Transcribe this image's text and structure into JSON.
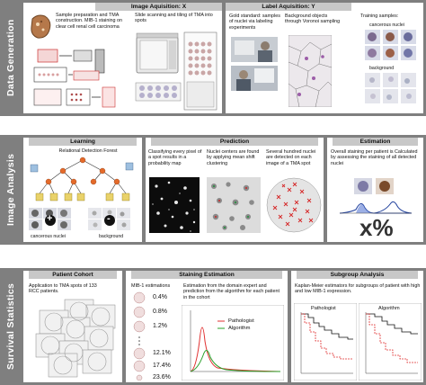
{
  "sections": [
    {
      "label": "Data Generation"
    },
    {
      "label": "Image Analysis"
    },
    {
      "label": "Survival Statistics"
    }
  ],
  "image_acquisition": {
    "title": "Image Aquisition: X",
    "text1": "Sample preparation and TMA construction. MIB-1 staining on clear cell renal cell carcinoma",
    "text2": "Slide scanning and tiling of TMA into spots"
  },
  "label_acquisition": {
    "title": "Label Aquisition: Y",
    "text1": "Gold standard: samples of nuclei via labeling experiments",
    "text2": "Background objects through Voronoi sampling",
    "text3": "Training samples:",
    "label_cancerous": "cancerous nuclei",
    "label_background": "background"
  },
  "learning": {
    "title": "Learning",
    "text": "Relational Detection Forest",
    "label_cancerous": "cancerous nuclei",
    "label_background": "background",
    "plus_symbol": "+",
    "minus_symbol": "-"
  },
  "prediction": {
    "title": "Prediction",
    "text1": "Classifying every pixel of a spot results in a probability map",
    "text2": "Nuclei centers are found by applying mean shift clustering",
    "text3": "Several hundred nuclei are detected on each image of a TMA spot"
  },
  "estimation": {
    "title": "Estimation",
    "text": "Overall staining per patient is Calculated by assessing the staining of all detected nuclei",
    "symbol": "x%"
  },
  "patient_cohort": {
    "title": "Patient Cohort",
    "text": "Application to TMA spots of 133 RCC patients."
  },
  "staining_estimation": {
    "title": "Staining Estimation",
    "text1": "MIB-1 estimations",
    "text2": "Estimation from the domain expert and prediction from the algorithm for each patient in the cohort",
    "percentages": [
      "0.4%",
      "0.8%",
      "1.2%",
      "12.1%",
      "17.4%",
      "23.6%"
    ],
    "legend": [
      "Pathologist",
      "Algorithm"
    ]
  },
  "subgroup_analysis": {
    "title": "Subgroup Analysis",
    "text": "Kaplan-Meier estimators for subgroups of patient with high and low MIB-1 expression.",
    "plot_titles": [
      "Pathologist",
      "Algorithm"
    ]
  },
  "colors": {
    "band": "#7f7f7f",
    "header": "#c8c8c8",
    "pathologist": "#e03030",
    "algorithm": "#2aa02a",
    "cell_red": "#d62728"
  }
}
